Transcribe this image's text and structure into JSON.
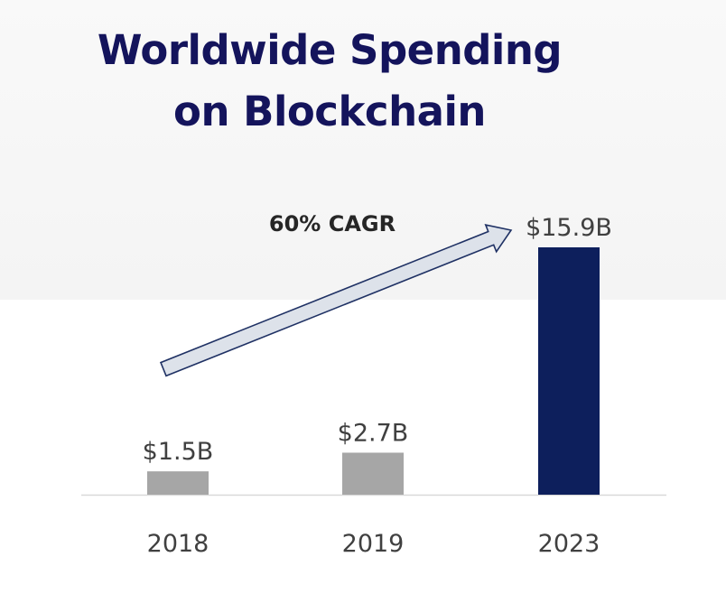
{
  "title_line1": "Worldwide Spending",
  "title_line2": "on Blockchain",
  "annotation": "60% CAGR",
  "colors": {
    "title": "#14145c",
    "bar_gray": "#a6a6a6",
    "bar_highlight": "#0d1f5c",
    "arrow_fill": "#dde2ea",
    "arrow_stroke": "#1f3164",
    "text": "#404040",
    "axis": "#d9d9d9"
  },
  "chart_data": {
    "type": "bar",
    "title": "Worldwide Spending on Blockchain",
    "categories": [
      "2018",
      "2019",
      "2023"
    ],
    "values": [
      1.5,
      2.7,
      15.9
    ],
    "unit": "$B",
    "data_labels": [
      "$1.5B",
      "$2.7B",
      "$15.9B"
    ],
    "highlight_index": 2,
    "xlabel": "",
    "ylabel": "",
    "ylim": [
      0,
      15.9
    ],
    "grid": false,
    "annotations": [
      "60% CAGR"
    ]
  }
}
